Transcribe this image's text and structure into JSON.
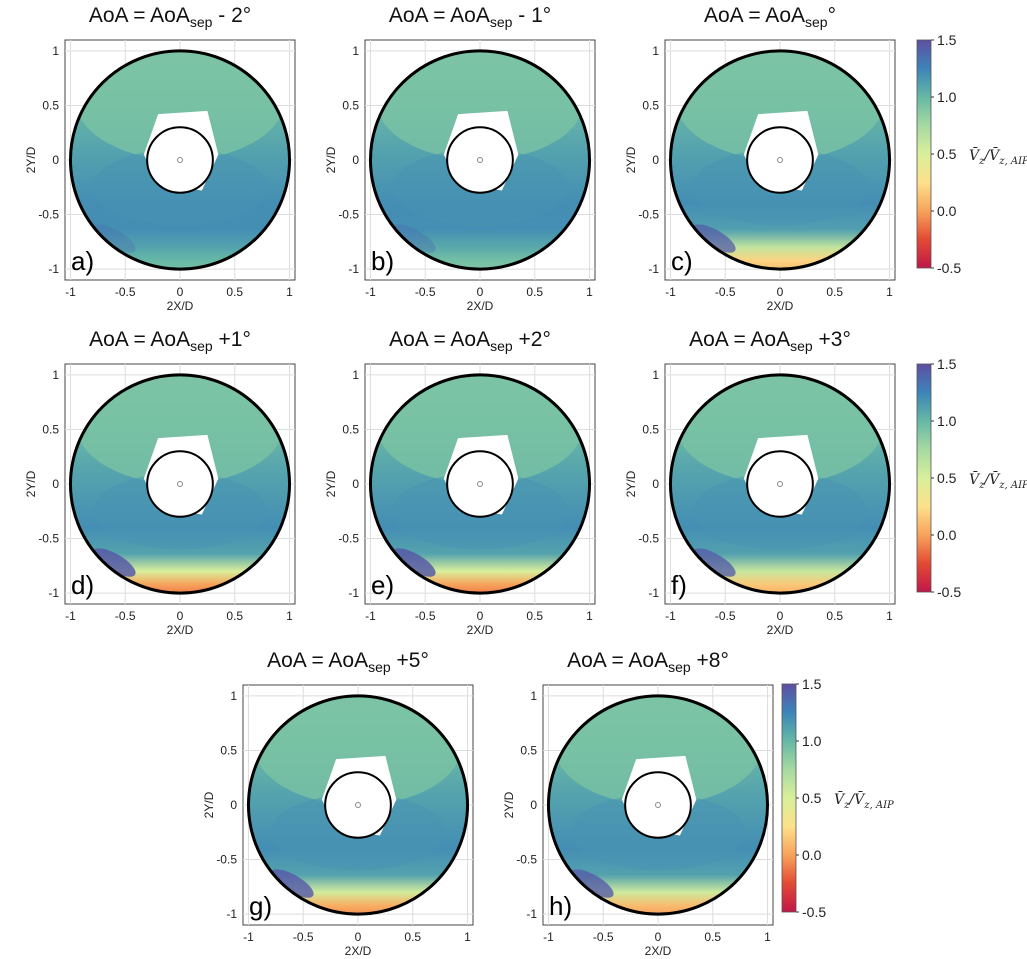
{
  "chart_data": [
    {
      "type": "heatmap",
      "panel_label": "a)",
      "title": {
        "pre": "AoA = AoA",
        "sub": "sep",
        "post": " - 2°"
      },
      "xlabel": "2X/D",
      "ylabel": "2Y/D",
      "xlim": [
        -1.05,
        1.05
      ],
      "ylim": [
        -1.1,
        1.1
      ],
      "xticks": [
        "-1",
        "-0.5",
        "0",
        "0.5",
        "1"
      ],
      "yticks": [
        "1",
        "0.5",
        "0",
        "-0.5",
        "-1"
      ],
      "bottom_deficit": 0.0,
      "grid": true
    },
    {
      "type": "heatmap",
      "panel_label": "b)",
      "title": {
        "pre": "AoA = AoA",
        "sub": "sep",
        "post": " - 1°"
      },
      "xlabel": "2X/D",
      "ylabel": "2Y/D",
      "xlim": [
        -1.05,
        1.05
      ],
      "ylim": [
        -1.1,
        1.1
      ],
      "xticks": [
        "-1",
        "-0.5",
        "0",
        "0.5",
        "1"
      ],
      "yticks": [
        "1",
        "0.5",
        "0",
        "-0.5",
        "-1"
      ],
      "bottom_deficit": 0.05,
      "grid": true
    },
    {
      "type": "heatmap",
      "panel_label": "c)",
      "title": {
        "pre": "AoA = AoA",
        "sub": "sep",
        "post": "°"
      },
      "xlabel": "2X/D",
      "ylabel": "2Y/D",
      "xlim": [
        -1.05,
        1.05
      ],
      "ylim": [
        -1.1,
        1.1
      ],
      "xticks": [
        "-1",
        "-0.5",
        "0",
        "0.5",
        "1"
      ],
      "yticks": [
        "1",
        "0.5",
        "0",
        "-0.5",
        "-1"
      ],
      "bottom_deficit": 0.8,
      "grid": true
    },
    {
      "type": "heatmap",
      "panel_label": "d)",
      "title": {
        "pre": "AoA = AoA",
        "sub": "sep",
        "post": " +1°"
      },
      "xlabel": "2X/D",
      "ylabel": "2Y/D",
      "xlim": [
        -1.05,
        1.05
      ],
      "ylim": [
        -1.1,
        1.1
      ],
      "xticks": [
        "-1",
        "-0.5",
        "0",
        "0.5",
        "1"
      ],
      "yticks": [
        "1",
        "0.5",
        "0",
        "-0.5",
        "-1"
      ],
      "bottom_deficit": 1.0,
      "grid": true
    },
    {
      "type": "heatmap",
      "panel_label": "e)",
      "title": {
        "pre": "AoA = AoA",
        "sub": "sep",
        "post": " +2°"
      },
      "xlabel": "2X/D",
      "ylabel": "2Y/D",
      "xlim": [
        -1.05,
        1.05
      ],
      "ylim": [
        -1.1,
        1.1
      ],
      "xticks": [
        "-1",
        "-0.5",
        "0",
        "0.5",
        "1"
      ],
      "yticks": [
        "1",
        "0.5",
        "0",
        "-0.5",
        "-1"
      ],
      "bottom_deficit": 1.0,
      "grid": true
    },
    {
      "type": "heatmap",
      "panel_label": "f)",
      "title": {
        "pre": "AoA = AoA",
        "sub": "sep",
        "post": " +3°"
      },
      "xlabel": "2X/D",
      "ylabel": "2Y/D",
      "xlim": [
        -1.05,
        1.05
      ],
      "ylim": [
        -1.1,
        1.1
      ],
      "xticks": [
        "-1",
        "-0.5",
        "0",
        "0.5",
        "1"
      ],
      "yticks": [
        "1",
        "0.5",
        "0",
        "-0.5",
        "-1"
      ],
      "bottom_deficit": 0.85,
      "grid": true
    },
    {
      "type": "heatmap",
      "panel_label": "g)",
      "title": {
        "pre": "AoA = AoA",
        "sub": "sep",
        "post": " +5°"
      },
      "xlabel": "2X/D",
      "ylabel": "2Y/D",
      "xlim": [
        -1.05,
        1.05
      ],
      "ylim": [
        -1.1,
        1.1
      ],
      "xticks": [
        "-1",
        "-0.5",
        "0",
        "0.5",
        "1"
      ],
      "yticks": [
        "1",
        "0.5",
        "0",
        "-0.5",
        "-1"
      ],
      "bottom_deficit": 0.95,
      "grid": true
    },
    {
      "type": "heatmap",
      "panel_label": "h)",
      "title": {
        "pre": "AoA = AoA",
        "sub": "sep",
        "post": " +8°"
      },
      "xlabel": "2X/D",
      "ylabel": "2Y/D",
      "xlim": [
        -1.05,
        1.05
      ],
      "ylim": [
        -1.1,
        1.1
      ],
      "xticks": [
        "-1",
        "-0.5",
        "0",
        "0.5",
        "1"
      ],
      "yticks": [
        "1",
        "0.5",
        "0",
        "-0.5",
        "-1"
      ],
      "bottom_deficit": 0.9,
      "grid": true
    }
  ],
  "colorbar": {
    "label_html": "V̄_z / V̄_z,AIP",
    "label_main": "V̄",
    "label_sub1": "z",
    "label_den": "/V̄",
    "label_sub2": "z, AIP",
    "range": [
      -0.5,
      1.5
    ],
    "ticks": [
      "1.5",
      "1.0",
      "0.5",
      "0.0",
      "-0.5"
    ],
    "tick_values": [
      1.5,
      1.0,
      0.5,
      0.0,
      -0.5
    ],
    "colors": [
      "#c0174a",
      "#e34a33",
      "#f7a35c",
      "#fde08b",
      "#d9ef9b",
      "#a6d9a1",
      "#66b8a6",
      "#3c84b8",
      "#5e4fa2"
    ]
  }
}
